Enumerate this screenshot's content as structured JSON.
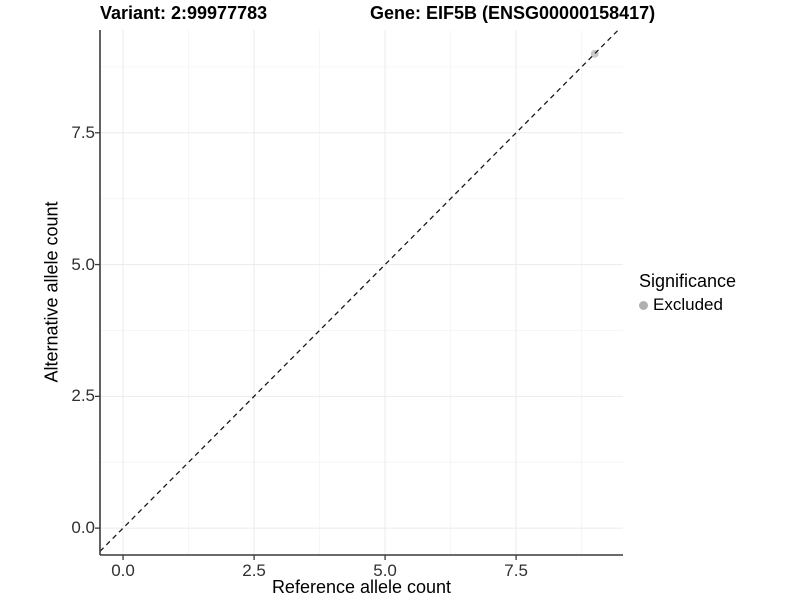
{
  "chart_data": {
    "type": "scatter",
    "title_left": "Variant: 2:99977783",
    "title_right": "Gene: EIF5B (ENSG00000158417)",
    "xlabel": "Reference allele count",
    "ylabel": "Alternative allele count",
    "x_ticks": [
      0.0,
      2.5,
      5.0,
      7.5
    ],
    "x_tick_labels": [
      "0.0",
      "2.5",
      "5.0",
      "7.5"
    ],
    "y_ticks": [
      0.0,
      2.5,
      5.0,
      7.5
    ],
    "y_tick_labels": [
      "0.0",
      "2.5",
      "5.0",
      "7.5"
    ],
    "x_minor_ticks": [
      1.25,
      3.75,
      6.25,
      8.75
    ],
    "y_minor_ticks": [
      1.25,
      3.75,
      6.25,
      8.75
    ],
    "xlim": [
      -0.44,
      9.54
    ],
    "ylim": [
      -0.51,
      9.45
    ],
    "grid": "major+minor",
    "legend": {
      "title": "Significance",
      "position": "right",
      "entries": [
        {
          "label": "Excluded",
          "marker": "circle",
          "color": "#b0b0b0"
        }
      ]
    },
    "series": [
      {
        "name": "Excluded",
        "points": [
          {
            "x": 9,
            "y": 9
          }
        ],
        "color": "#c9c9c9",
        "marker_radius": 4
      }
    ],
    "reference_line": {
      "type": "abline",
      "slope": 1,
      "intercept": 0,
      "style": "dashed",
      "color": "#1a1a1a"
    },
    "colors": {
      "background": "#ffffff",
      "grid_major": "#ebebeb",
      "grid_minor": "#f6f6f6",
      "axis": "#3a3a3a",
      "tick_text": "#303030",
      "point": "#c9c9c9",
      "legend_point": "#b0b0b0"
    }
  }
}
